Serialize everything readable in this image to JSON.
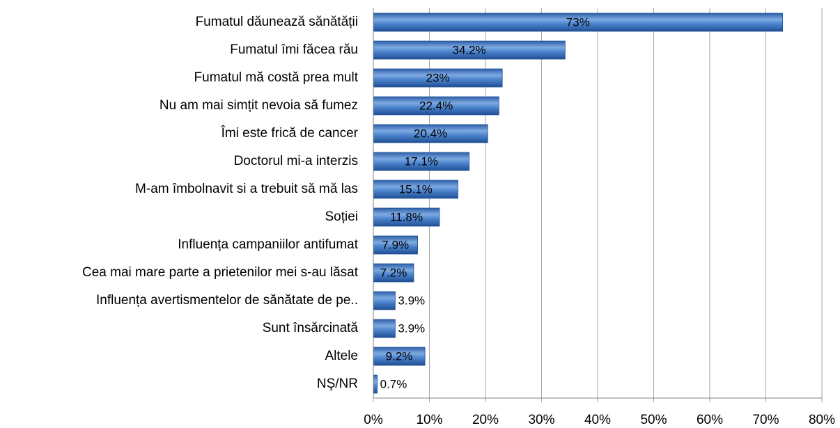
{
  "chart_data": {
    "type": "hbar",
    "categories": [
      "Fumatul dăunează sănătății",
      "Fumatul îmi făcea rău",
      "Fumatul mă costă prea mult",
      "Nu am mai simțit nevoia să fumez",
      "Îmi este frică de cancer",
      "Doctorul mi-a interzis",
      "M-am îmbolnavit si a trebuit să mă las",
      "Soției",
      "Influența campaniilor antifumat",
      "Cea mai mare parte a prietenilor mei s-au lăsat",
      "Influența avertismentelor de sănătate de pe..",
      "Sunt însărcinată",
      "Altele",
      "NŞ/NR"
    ],
    "values": [
      73,
      34.2,
      23,
      22.4,
      20.4,
      17.1,
      15.1,
      11.8,
      7.9,
      7.2,
      3.9,
      3.9,
      9.2,
      0.7
    ],
    "value_labels": [
      "73%",
      "34.2%",
      "23%",
      "22.4%",
      "20.4%",
      "17.1%",
      "15.1%",
      "11.8%",
      "7.9%",
      "7.2%",
      "3.9%",
      "3.9%",
      "9.2%",
      "0.7%"
    ],
    "color": "#3f78c8",
    "xlim": [
      0,
      80
    ],
    "xticks": [
      {
        "value": 0,
        "label": "0%"
      },
      {
        "value": 10,
        "label": "10%"
      },
      {
        "value": 20,
        "label": "20%"
      },
      {
        "value": 30,
        "label": "30%"
      },
      {
        "value": 40,
        "label": "40%"
      },
      {
        "value": 50,
        "label": "50%"
      },
      {
        "value": 60,
        "label": "60%"
      },
      {
        "value": 70,
        "label": "70%"
      },
      {
        "value": 80,
        "label": "80%"
      }
    ],
    "grid": true
  }
}
